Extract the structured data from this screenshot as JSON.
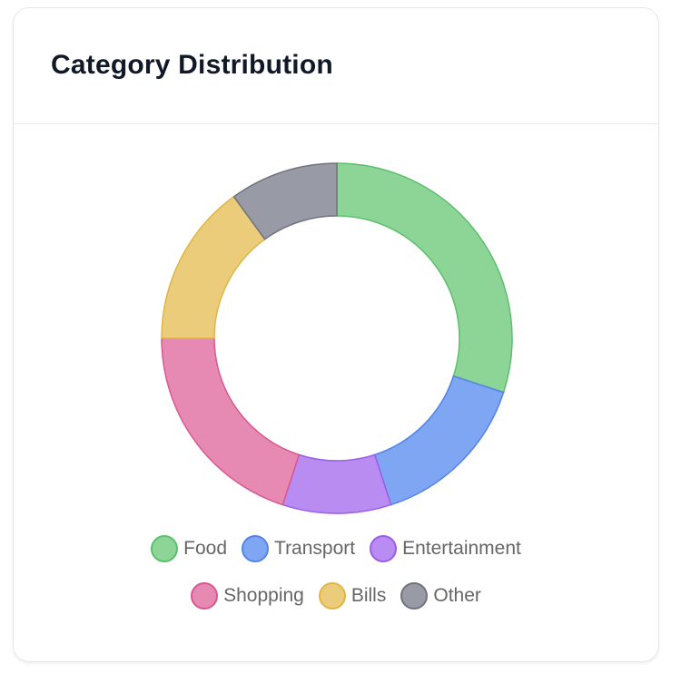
{
  "card": {
    "title": "Category Distribution"
  },
  "legend": {
    "rows": [
      [
        {
          "label": "Food",
          "fill": "#8dd597",
          "stroke": "#5cbf6c"
        },
        {
          "label": "Transport",
          "fill": "#7fa6f2",
          "stroke": "#5383e8"
        },
        {
          "label": "Entertainment",
          "fill": "#b98cf2",
          "stroke": "#9b5de8"
        }
      ],
      [
        {
          "label": "Shopping",
          "fill": "#e689b3",
          "stroke": "#d9588f"
        },
        {
          "label": "Bills",
          "fill": "#eacc7a",
          "stroke": "#e0b545"
        },
        {
          "label": "Other",
          "fill": "#989ba5",
          "stroke": "#70737d"
        }
      ]
    ]
  },
  "chart_data": {
    "type": "pie",
    "variant": "doughnut",
    "title": "Category Distribution",
    "categories": [
      "Food",
      "Transport",
      "Entertainment",
      "Shopping",
      "Bills",
      "Other"
    ],
    "values": [
      30,
      15,
      10,
      20,
      15,
      10
    ],
    "colors": [
      "#8dd597",
      "#7fa6f2",
      "#b98cf2",
      "#e689b3",
      "#eacc7a",
      "#989ba5"
    ],
    "border_colors": [
      "#5cbf6c",
      "#5383e8",
      "#9b5de8",
      "#d9588f",
      "#e0b545",
      "#70737d"
    ],
    "start_angle_deg": 0,
    "direction": "clockwise",
    "cutout_ratio": 0.7,
    "legend_position": "bottom",
    "xlabel": "",
    "ylabel": ""
  }
}
